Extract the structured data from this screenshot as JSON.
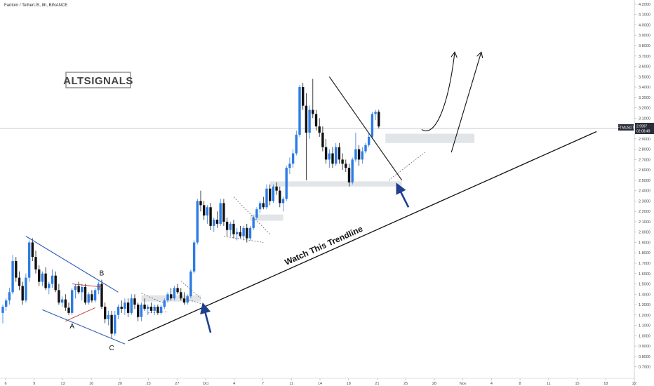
{
  "chart_data": {
    "type": "candlestick",
    "symbol": "Fantom / TetherUS, 8h, BINANCE",
    "logo": "ALTSIGNALS",
    "ylim": [
      0.65,
      4.22
    ],
    "y_ticks": [
      "4.2000",
      "4.1000",
      "4.0000",
      "3.9000",
      "3.8000",
      "3.7000",
      "3.6000",
      "3.5000",
      "3.4000",
      "3.3000",
      "3.2000",
      "3.1000",
      "3.0000",
      "2.9000",
      "2.8000",
      "2.7000",
      "2.6000",
      "2.5000",
      "2.4000",
      "2.3000",
      "2.2000",
      "2.1000",
      "2.0000",
      "1.9000",
      "1.8000",
      "1.7000",
      "1.6000",
      "1.5000",
      "1.4000",
      "1.3000",
      "1.2000",
      "1.1000",
      "1.0000",
      "0.9000",
      "0.8000",
      "0.7000"
    ],
    "x_ticks": [
      "6",
      "9",
      "13",
      "16",
      "20",
      "23",
      "27",
      "Oct",
      "4",
      "7",
      "11",
      "14",
      "18",
      "21",
      "25",
      "28",
      "Nov",
      "4",
      "8",
      "11",
      "15",
      "18",
      "22"
    ],
    "price_tag": {
      "label": "FTMUSDT",
      "price": "2.9997",
      "countdown": "02:08:49",
      "value": 2.9997
    },
    "candles": [
      {
        "o": 1.22,
        "h": 1.3,
        "l": 1.12,
        "c": 1.28
      },
      {
        "o": 1.28,
        "h": 1.36,
        "l": 1.24,
        "c": 1.34
      },
      {
        "o": 1.34,
        "h": 1.46,
        "l": 1.3,
        "c": 1.42
      },
      {
        "o": 1.42,
        "h": 1.78,
        "l": 1.4,
        "c": 1.72
      },
      {
        "o": 1.72,
        "h": 1.76,
        "l": 1.52,
        "c": 1.56
      },
      {
        "o": 1.56,
        "h": 1.62,
        "l": 1.44,
        "c": 1.48
      },
      {
        "o": 1.48,
        "h": 1.52,
        "l": 1.3,
        "c": 1.34
      },
      {
        "o": 1.34,
        "h": 1.6,
        "l": 1.32,
        "c": 1.56
      },
      {
        "o": 1.56,
        "h": 1.92,
        "l": 1.52,
        "c": 1.9
      },
      {
        "o": 1.9,
        "h": 1.94,
        "l": 1.72,
        "c": 1.76
      },
      {
        "o": 1.76,
        "h": 1.82,
        "l": 1.6,
        "c": 1.64
      },
      {
        "o": 1.64,
        "h": 1.68,
        "l": 1.48,
        "c": 1.52
      },
      {
        "o": 1.52,
        "h": 1.62,
        "l": 1.48,
        "c": 1.6
      },
      {
        "o": 1.6,
        "h": 1.66,
        "l": 1.44,
        "c": 1.46
      },
      {
        "o": 1.46,
        "h": 1.52,
        "l": 1.4,
        "c": 1.5
      },
      {
        "o": 1.5,
        "h": 1.64,
        "l": 1.46,
        "c": 1.58
      },
      {
        "o": 1.58,
        "h": 1.62,
        "l": 1.42,
        "c": 1.44
      },
      {
        "o": 1.44,
        "h": 1.5,
        "l": 1.3,
        "c": 1.32
      },
      {
        "o": 1.32,
        "h": 1.38,
        "l": 1.28,
        "c": 1.35
      },
      {
        "o": 1.35,
        "h": 1.4,
        "l": 1.24,
        "c": 1.27
      },
      {
        "o": 1.27,
        "h": 1.32,
        "l": 1.2,
        "c": 1.22
      },
      {
        "o": 1.22,
        "h": 1.46,
        "l": 1.2,
        "c": 1.44
      },
      {
        "o": 1.44,
        "h": 1.5,
        "l": 1.36,
        "c": 1.48
      },
      {
        "o": 1.48,
        "h": 1.52,
        "l": 1.4,
        "c": 1.42
      },
      {
        "o": 1.42,
        "h": 1.5,
        "l": 1.34,
        "c": 1.47
      },
      {
        "o": 1.47,
        "h": 1.5,
        "l": 1.3,
        "c": 1.32
      },
      {
        "o": 1.32,
        "h": 1.42,
        "l": 1.3,
        "c": 1.4
      },
      {
        "o": 1.4,
        "h": 1.44,
        "l": 1.32,
        "c": 1.34
      },
      {
        "o": 1.34,
        "h": 1.46,
        "l": 1.32,
        "c": 1.44
      },
      {
        "o": 1.44,
        "h": 1.52,
        "l": 1.4,
        "c": 1.5
      },
      {
        "o": 1.5,
        "h": 1.54,
        "l": 1.26,
        "c": 1.28
      },
      {
        "o": 1.28,
        "h": 1.32,
        "l": 1.12,
        "c": 1.16
      },
      {
        "o": 1.16,
        "h": 1.24,
        "l": 1.1,
        "c": 1.2
      },
      {
        "o": 1.2,
        "h": 1.24,
        "l": 0.98,
        "c": 1.02
      },
      {
        "o": 1.02,
        "h": 1.24,
        "l": 1.0,
        "c": 1.2
      },
      {
        "o": 1.2,
        "h": 1.3,
        "l": 1.16,
        "c": 1.28
      },
      {
        "o": 1.28,
        "h": 1.34,
        "l": 1.22,
        "c": 1.26
      },
      {
        "o": 1.26,
        "h": 1.36,
        "l": 1.2,
        "c": 1.32
      },
      {
        "o": 1.32,
        "h": 1.36,
        "l": 1.18,
        "c": 1.22
      },
      {
        "o": 1.22,
        "h": 1.4,
        "l": 1.2,
        "c": 1.36
      },
      {
        "o": 1.36,
        "h": 1.4,
        "l": 1.26,
        "c": 1.3
      },
      {
        "o": 1.3,
        "h": 1.32,
        "l": 1.14,
        "c": 1.18
      },
      {
        "o": 1.18,
        "h": 1.32,
        "l": 1.14,
        "c": 1.3
      },
      {
        "o": 1.3,
        "h": 1.36,
        "l": 1.24,
        "c": 1.26
      },
      {
        "o": 1.26,
        "h": 1.3,
        "l": 1.2,
        "c": 1.28
      },
      {
        "o": 1.28,
        "h": 1.32,
        "l": 1.22,
        "c": 1.24
      },
      {
        "o": 1.24,
        "h": 1.3,
        "l": 1.2,
        "c": 1.28
      },
      {
        "o": 1.28,
        "h": 1.3,
        "l": 1.2,
        "c": 1.22
      },
      {
        "o": 1.22,
        "h": 1.3,
        "l": 1.2,
        "c": 1.28
      },
      {
        "o": 1.28,
        "h": 1.36,
        "l": 1.26,
        "c": 1.34
      },
      {
        "o": 1.34,
        "h": 1.42,
        "l": 1.32,
        "c": 1.4
      },
      {
        "o": 1.4,
        "h": 1.46,
        "l": 1.34,
        "c": 1.36
      },
      {
        "o": 1.36,
        "h": 1.48,
        "l": 1.34,
        "c": 1.46
      },
      {
        "o": 1.46,
        "h": 1.5,
        "l": 1.4,
        "c": 1.42
      },
      {
        "o": 1.42,
        "h": 1.46,
        "l": 1.34,
        "c": 1.36
      },
      {
        "o": 1.36,
        "h": 1.42,
        "l": 1.3,
        "c": 1.32
      },
      {
        "o": 1.32,
        "h": 1.4,
        "l": 1.3,
        "c": 1.38
      },
      {
        "o": 1.38,
        "h": 1.64,
        "l": 1.36,
        "c": 1.62
      },
      {
        "o": 1.62,
        "h": 1.92,
        "l": 1.6,
        "c": 1.9
      },
      {
        "o": 1.9,
        "h": 2.32,
        "l": 1.88,
        "c": 2.3
      },
      {
        "o": 2.3,
        "h": 2.4,
        "l": 2.2,
        "c": 2.26
      },
      {
        "o": 2.26,
        "h": 2.3,
        "l": 2.12,
        "c": 2.16
      },
      {
        "o": 2.16,
        "h": 2.26,
        "l": 2.08,
        "c": 2.24
      },
      {
        "o": 2.24,
        "h": 2.28,
        "l": 2.02,
        "c": 2.06
      },
      {
        "o": 2.06,
        "h": 2.14,
        "l": 2.0,
        "c": 2.12
      },
      {
        "o": 2.12,
        "h": 2.2,
        "l": 2.04,
        "c": 2.08
      },
      {
        "o": 2.08,
        "h": 2.32,
        "l": 2.06,
        "c": 2.28
      },
      {
        "o": 2.28,
        "h": 2.32,
        "l": 2.06,
        "c": 2.1
      },
      {
        "o": 2.1,
        "h": 2.14,
        "l": 1.96,
        "c": 2.02
      },
      {
        "o": 2.02,
        "h": 2.1,
        "l": 1.96,
        "c": 2.08
      },
      {
        "o": 2.08,
        "h": 2.12,
        "l": 1.94,
        "c": 1.98
      },
      {
        "o": 1.98,
        "h": 2.04,
        "l": 1.92,
        "c": 2.0
      },
      {
        "o": 2.0,
        "h": 2.06,
        "l": 1.94,
        "c": 1.96
      },
      {
        "o": 1.96,
        "h": 2.06,
        "l": 1.92,
        "c": 2.04
      },
      {
        "o": 2.04,
        "h": 2.08,
        "l": 1.9,
        "c": 1.94
      },
      {
        "o": 1.94,
        "h": 2.06,
        "l": 1.92,
        "c": 2.04
      },
      {
        "o": 2.04,
        "h": 2.16,
        "l": 2.02,
        "c": 2.14
      },
      {
        "o": 2.14,
        "h": 2.24,
        "l": 2.12,
        "c": 2.22
      },
      {
        "o": 2.22,
        "h": 2.3,
        "l": 2.18,
        "c": 2.28
      },
      {
        "o": 2.28,
        "h": 2.34,
        "l": 2.22,
        "c": 2.24
      },
      {
        "o": 2.24,
        "h": 2.46,
        "l": 2.22,
        "c": 2.42
      },
      {
        "o": 2.42,
        "h": 2.46,
        "l": 2.26,
        "c": 2.3
      },
      {
        "o": 2.3,
        "h": 2.46,
        "l": 2.28,
        "c": 2.44
      },
      {
        "o": 2.44,
        "h": 2.48,
        "l": 2.36,
        "c": 2.4
      },
      {
        "o": 2.4,
        "h": 2.44,
        "l": 2.24,
        "c": 2.28
      },
      {
        "o": 2.28,
        "h": 2.34,
        "l": 2.2,
        "c": 2.32
      },
      {
        "o": 2.32,
        "h": 2.64,
        "l": 2.3,
        "c": 2.62
      },
      {
        "o": 2.62,
        "h": 2.72,
        "l": 2.56,
        "c": 2.66
      },
      {
        "o": 2.66,
        "h": 2.8,
        "l": 2.62,
        "c": 2.76
      },
      {
        "o": 2.76,
        "h": 2.98,
        "l": 2.74,
        "c": 2.94
      },
      {
        "o": 2.94,
        "h": 3.42,
        "l": 2.92,
        "c": 3.4
      },
      {
        "o": 3.4,
        "h": 3.44,
        "l": 3.18,
        "c": 3.22
      },
      {
        "o": 3.22,
        "h": 3.34,
        "l": 2.5,
        "c": 2.96
      },
      {
        "o": 2.96,
        "h": 3.22,
        "l": 2.9,
        "c": 3.18
      },
      {
        "o": 3.18,
        "h": 3.48,
        "l": 3.1,
        "c": 3.14
      },
      {
        "o": 3.14,
        "h": 3.18,
        "l": 2.98,
        "c": 3.02
      },
      {
        "o": 3.02,
        "h": 3.1,
        "l": 2.92,
        "c": 2.96
      },
      {
        "o": 2.96,
        "h": 3.02,
        "l": 2.78,
        "c": 2.82
      },
      {
        "o": 2.82,
        "h": 2.9,
        "l": 2.66,
        "c": 2.7
      },
      {
        "o": 2.7,
        "h": 2.8,
        "l": 2.62,
        "c": 2.76
      },
      {
        "o": 2.76,
        "h": 2.82,
        "l": 2.62,
        "c": 2.66
      },
      {
        "o": 2.66,
        "h": 2.86,
        "l": 2.64,
        "c": 2.82
      },
      {
        "o": 2.82,
        "h": 2.86,
        "l": 2.66,
        "c": 2.7
      },
      {
        "o": 2.7,
        "h": 2.76,
        "l": 2.6,
        "c": 2.66
      },
      {
        "o": 2.66,
        "h": 2.7,
        "l": 2.58,
        "c": 2.62
      },
      {
        "o": 2.62,
        "h": 2.66,
        "l": 2.44,
        "c": 2.48
      },
      {
        "o": 2.48,
        "h": 2.72,
        "l": 2.46,
        "c": 2.7
      },
      {
        "o": 2.7,
        "h": 2.96,
        "l": 2.68,
        "c": 2.8
      },
      {
        "o": 2.8,
        "h": 2.84,
        "l": 2.64,
        "c": 2.7
      },
      {
        "o": 2.7,
        "h": 2.82,
        "l": 2.66,
        "c": 2.78
      },
      {
        "o": 2.78,
        "h": 2.86,
        "l": 2.76,
        "c": 2.84
      },
      {
        "o": 2.84,
        "h": 2.96,
        "l": 2.82,
        "c": 2.92
      },
      {
        "o": 2.92,
        "h": 3.16,
        "l": 2.9,
        "c": 3.14
      },
      {
        "o": 3.14,
        "h": 3.18,
        "l": 3.08,
        "c": 3.16
      },
      {
        "o": 3.16,
        "h": 3.18,
        "l": 3.0,
        "c": 3.02
      }
    ],
    "annotations": {
      "wave_labels": [
        {
          "text": "A",
          "x": 21,
          "y": 1.07
        },
        {
          "text": "B",
          "x": 30,
          "y": 1.58
        },
        {
          "text": "C",
          "x": 33,
          "y": 0.86
        }
      ],
      "trendline_label": "Watch This Trendline",
      "trendline": [
        [
          38,
          0.95
        ],
        [
          180,
          2.97
        ]
      ],
      "channel_upper": [
        [
          7,
          1.96
        ],
        [
          35,
          1.42
        ]
      ],
      "channel_lower": [
        [
          12,
          1.25
        ],
        [
          37,
          0.92
        ]
      ],
      "triangle_upper": [
        [
          21,
          1.5
        ],
        [
          30,
          1.47
        ]
      ],
      "triangle_lower": [
        [
          19,
          1.14
        ],
        [
          28,
          1.27
        ]
      ],
      "descending_line": [
        [
          99,
          3.5
        ],
        [
          121,
          2.5
        ]
      ],
      "zones": [
        {
          "x1": 42,
          "x2": 60,
          "y1": 1.33,
          "y2": 1.39
        },
        {
          "x1": 75,
          "x2": 85,
          "y1": 2.11,
          "y2": 2.17
        },
        {
          "x1": 81,
          "x2": 121,
          "y1": 2.44,
          "y2": 2.49
        },
        {
          "x1": 116,
          "x2": 143,
          "y1": 2.86,
          "y2": 2.95
        }
      ],
      "blue_arrows": [
        {
          "from": [
            63,
            1.03
          ],
          "to": [
            61,
            1.27
          ]
        },
        {
          "from": [
            123,
            2.24
          ],
          "to": [
            120,
            2.43
          ]
        }
      ],
      "projection_paths": [
        {
          "points": [
            [
              127,
              2.99
            ],
            [
              131,
              2.91
            ],
            [
              135,
              3.2
            ],
            [
              137,
              3.73
            ]
          ]
        },
        {
          "points": [
            [
              136,
              2.77
            ],
            [
              145,
              3.73
            ]
          ]
        }
      ],
      "dashed_patterns": [
        [
          [
            [
              42,
              1.41
            ],
            [
              49,
              1.31
            ]
          ],
          [
            [
              44,
              1.22
            ],
            [
              50,
              1.23
            ]
          ]
        ],
        [
          [
            [
              54,
              1.53
            ],
            [
              60,
              1.36
            ]
          ],
          [
            [
              54,
              1.37
            ],
            [
              60,
              1.31
            ]
          ]
        ],
        [
          [
            [
              70,
              2.34
            ],
            [
              81,
              1.98
            ]
          ],
          [
            [
              67,
              1.96
            ],
            [
              79,
              1.9
            ]
          ]
        ],
        [
          [
            [
              117,
              2.5
            ],
            [
              128,
              2.77
            ]
          ]
        ]
      ]
    }
  }
}
